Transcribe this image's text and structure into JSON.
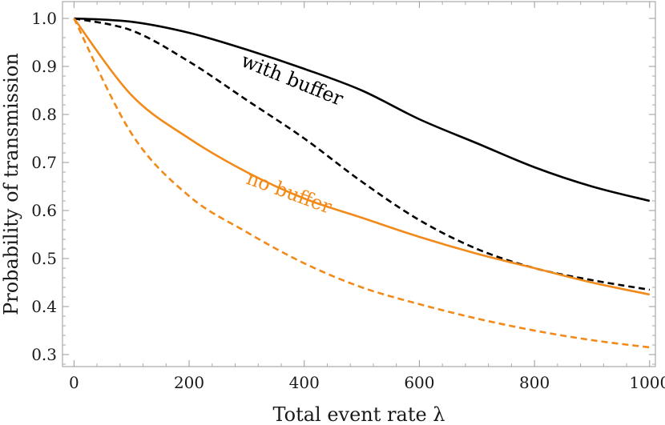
{
  "chart_data": {
    "type": "line",
    "title": "",
    "xlabel": "Total event rate λ",
    "ylabel": "Probability of transmission",
    "xlim": [
      -20,
      1010
    ],
    "ylim": [
      0.275,
      1.035
    ],
    "x_ticks": [
      0,
      200,
      400,
      600,
      800,
      1000
    ],
    "y_ticks": [
      0.3,
      0.4,
      0.5,
      0.6,
      0.7,
      0.8,
      0.9,
      1.0
    ],
    "x_tick_labels": [
      "0",
      "200",
      "400",
      "600",
      "800",
      "1000"
    ],
    "y_tick_labels": [
      "0.3",
      "0.4",
      "0.5",
      "0.6",
      "0.7",
      "0.8",
      "0.9",
      "1.0"
    ],
    "grid": false,
    "x": [
      0,
      100,
      200,
      300,
      400,
      500,
      600,
      700,
      800,
      900,
      1000
    ],
    "series": [
      {
        "name": "with buffer (solid)",
        "color": "#000000",
        "dash": "solid",
        "values": [
          1.0,
          0.993,
          0.97,
          0.935,
          0.895,
          0.85,
          0.79,
          0.74,
          0.69,
          0.65,
          0.62
        ]
      },
      {
        "name": "with buffer (dashed)",
        "color": "#000000",
        "dash": "dashed",
        "values": [
          1.0,
          0.975,
          0.91,
          0.83,
          0.75,
          0.66,
          0.58,
          0.52,
          0.48,
          0.455,
          0.435
        ]
      },
      {
        "name": "no buffer (solid)",
        "color": "#f28a1a",
        "dash": "solid",
        "values": [
          1.0,
          0.84,
          0.75,
          0.68,
          0.625,
          0.585,
          0.545,
          0.51,
          0.48,
          0.45,
          0.425
        ]
      },
      {
        "name": "no buffer (dashed)",
        "color": "#f28a1a",
        "dash": "dashed",
        "values": [
          1.0,
          0.76,
          0.63,
          0.555,
          0.49,
          0.44,
          0.405,
          0.375,
          0.35,
          0.33,
          0.315
        ]
      }
    ],
    "annotations": [
      {
        "text": "with buffer",
        "x": 375,
        "y": 0.86,
        "angle": 22,
        "color": "#000000"
      },
      {
        "text": "no buffer",
        "x": 370,
        "y": 0.625,
        "angle": 20,
        "color": "#f28a1a"
      }
    ]
  }
}
